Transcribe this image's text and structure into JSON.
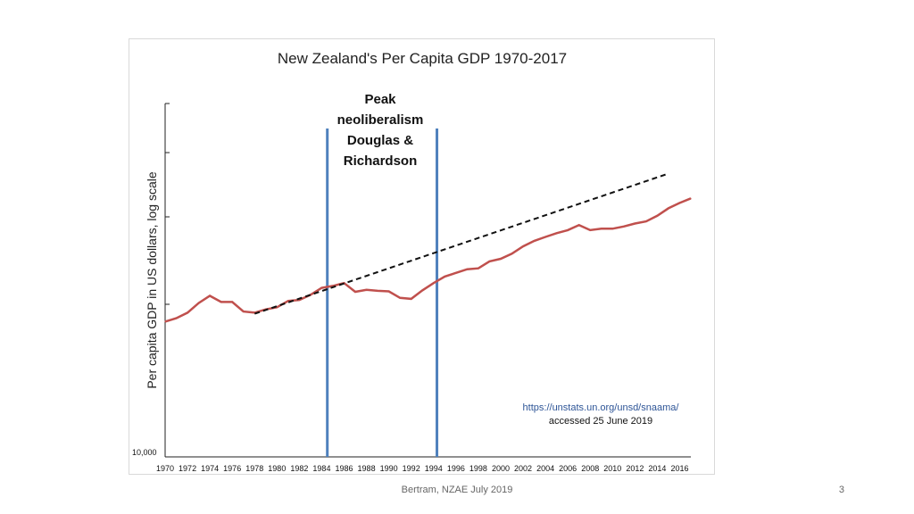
{
  "chart_data": {
    "type": "line",
    "title": "New Zealand's Per Capita GDP 1970-2017",
    "ylabel": "Per capita GDP in US dollars, log scale",
    "xlabel": "",
    "xlim": [
      1970,
      2017
    ],
    "ylim": [
      10000,
      52000
    ],
    "y_tick_labels": [
      {
        "value": 10000,
        "label": "10,000"
      }
    ],
    "x_tick_labels": [
      "1970",
      "1972",
      "1974",
      "1976",
      "1978",
      "1980",
      "1982",
      "1984",
      "1986",
      "1988",
      "1990",
      "1992",
      "1994",
      "1996",
      "1998",
      "2000",
      "2002",
      "2004",
      "2006",
      "2008",
      "2010",
      "2012",
      "2014",
      "2016"
    ],
    "gridlines": false,
    "series": [
      {
        "name": "Per capita GDP",
        "color": "#c0504d",
        "style": "solid",
        "points": [
          [
            1970,
            18800
          ],
          [
            1971,
            19100
          ],
          [
            1972,
            19600
          ],
          [
            1973,
            20500
          ],
          [
            1974,
            21200
          ],
          [
            1975,
            20600
          ],
          [
            1976,
            20600
          ],
          [
            1977,
            19700
          ],
          [
            1978,
            19600
          ],
          [
            1979,
            19900
          ],
          [
            1980,
            20100
          ],
          [
            1981,
            20700
          ],
          [
            1982,
            20800
          ],
          [
            1983,
            21300
          ],
          [
            1984,
            22000
          ],
          [
            1985,
            22200
          ],
          [
            1986,
            22500
          ],
          [
            1987,
            21600
          ],
          [
            1988,
            21800
          ],
          [
            1989,
            21700
          ],
          [
            1990,
            21650
          ],
          [
            1991,
            21000
          ],
          [
            1992,
            20900
          ],
          [
            1993,
            21750
          ],
          [
            1994,
            22500
          ],
          [
            1995,
            23200
          ],
          [
            1996,
            23600
          ],
          [
            1997,
            24000
          ],
          [
            1998,
            24100
          ],
          [
            1999,
            24900
          ],
          [
            2000,
            25200
          ],
          [
            2001,
            25800
          ],
          [
            2002,
            26700
          ],
          [
            2003,
            27400
          ],
          [
            2004,
            27900
          ],
          [
            2005,
            28400
          ],
          [
            2006,
            28800
          ],
          [
            2007,
            29500
          ],
          [
            2008,
            28800
          ],
          [
            2009,
            29000
          ],
          [
            2010,
            29000
          ],
          [
            2011,
            29300
          ],
          [
            2012,
            29700
          ],
          [
            2013,
            30000
          ],
          [
            2014,
            30800
          ],
          [
            2015,
            31900
          ],
          [
            2016,
            32700
          ],
          [
            2017,
            33400
          ]
        ]
      },
      {
        "name": "Trend",
        "color": "#111111",
        "style": "dashed",
        "points": [
          [
            1978,
            19500
          ],
          [
            2015,
            37500
          ]
        ]
      }
    ],
    "vertical_lines": [
      {
        "x": 1984.5,
        "color": "#4f81bd"
      },
      {
        "x": 1994.3,
        "color": "#4f81bd"
      }
    ],
    "annotations": {
      "peak": [
        "Peak",
        "neoliberalism",
        "Douglas &",
        "Richardson"
      ],
      "source_link": "https://unstats.un.org/unsd/snaama/",
      "source_note": "accessed 25 June 2019"
    }
  },
  "footer": {
    "text": "Bertram, NZAE July 2019",
    "slide_number": "3"
  }
}
